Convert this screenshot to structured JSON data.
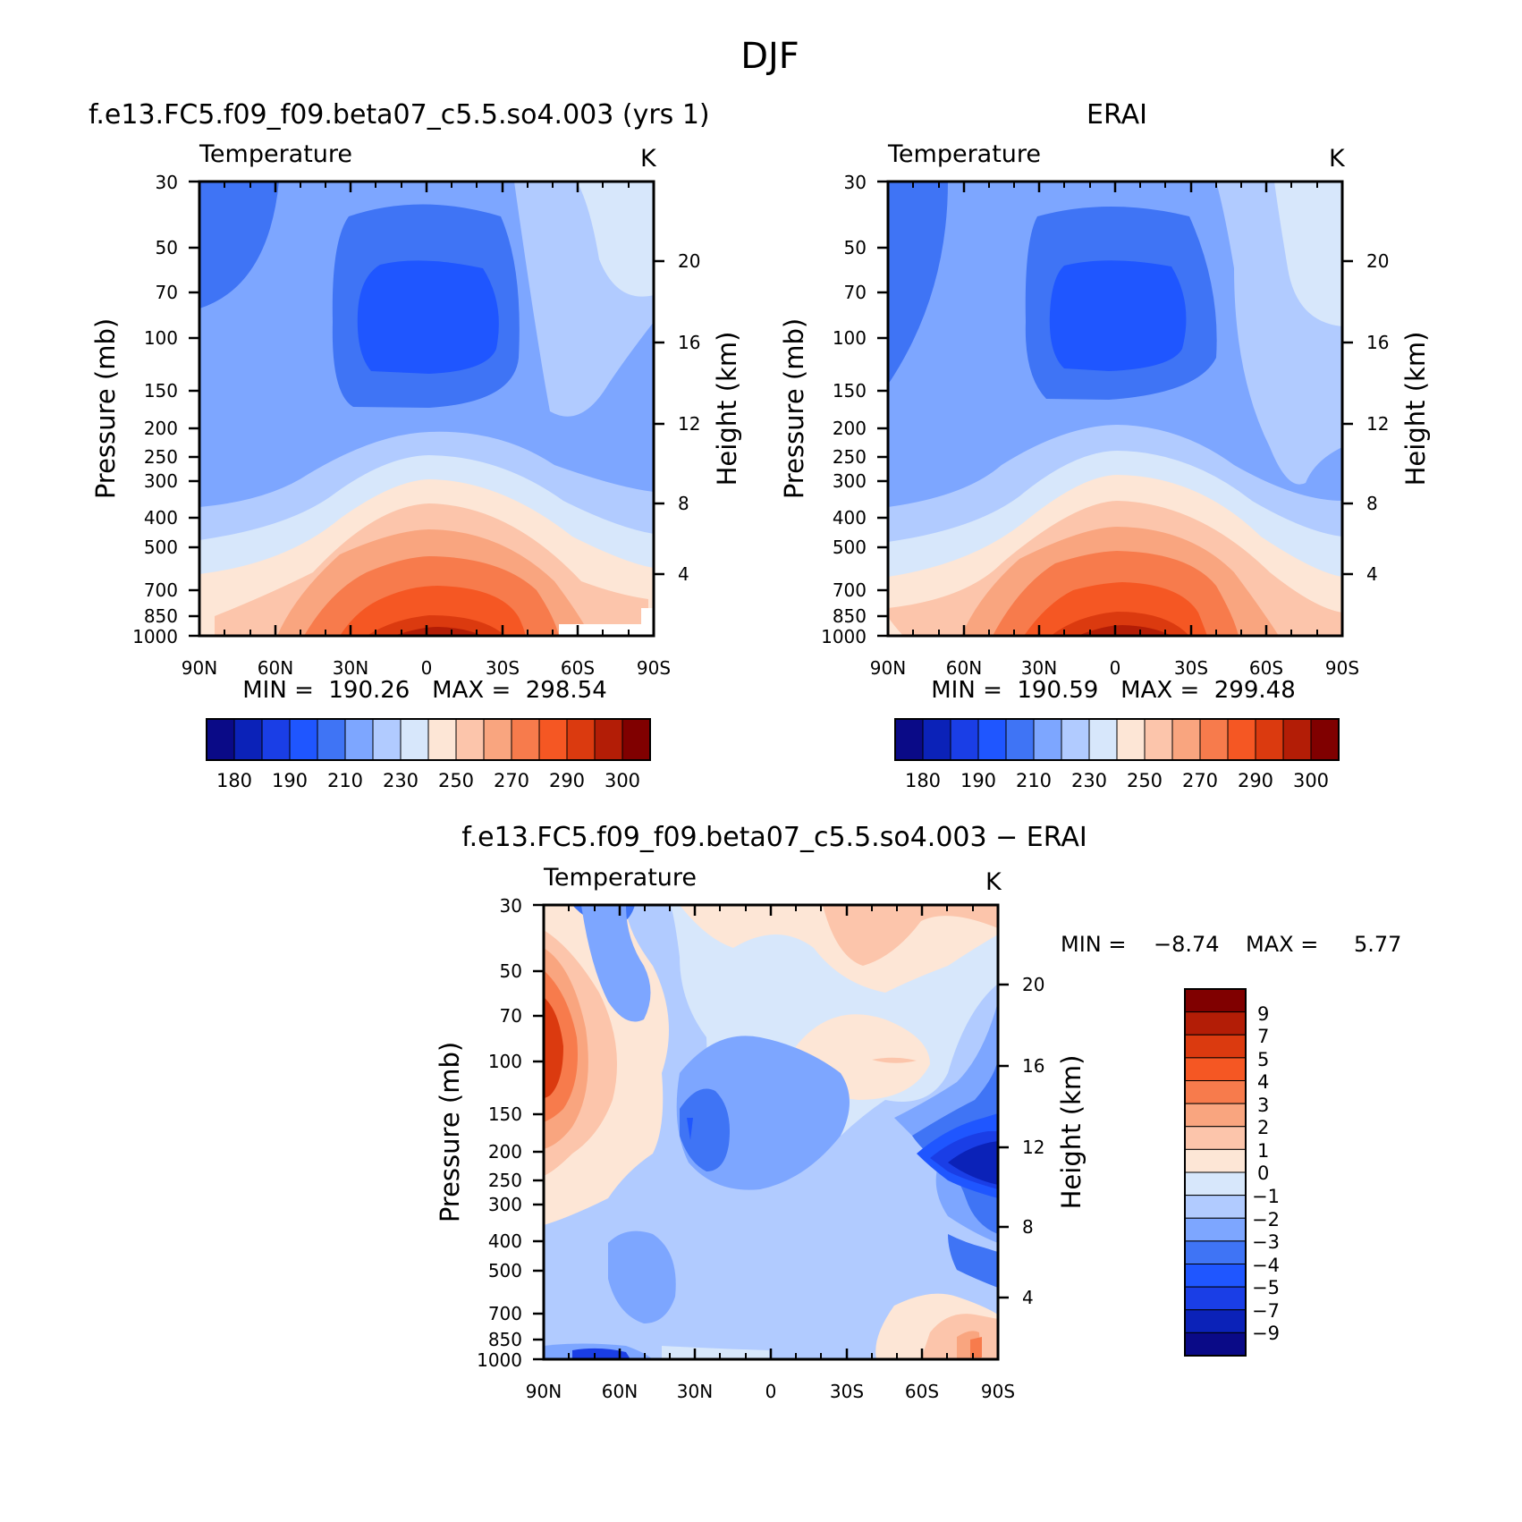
{
  "page_title": "DJF",
  "panels": [
    {
      "id": "model",
      "title": "f.e13.FC5.f09_f09.beta07_c5.5.so4.003 (yrs 1)",
      "variable_label": "Temperature",
      "units": "K",
      "min_max_label": "MIN =  190.26   MAX =  298.54"
    },
    {
      "id": "obs",
      "title": "ERAI",
      "variable_label": "Temperature",
      "units": "K",
      "min_max_label": "MIN =  190.59   MAX =  299.48"
    },
    {
      "id": "diff",
      "title": "f.e13.FC5.f09_f09.beta07_c5.5.so4.003 − ERAI",
      "variable_label": "Temperature",
      "units": "K",
      "min_label": "MIN =",
      "min_value": "−8.74",
      "max_label": "MAX =",
      "max_value": "5.77"
    }
  ],
  "axes": {
    "ylabel_left": "Pressure (mb)",
    "ylabel_right": "Height (km)",
    "pressure_ticks": [
      "30",
      "50",
      "70",
      "100",
      "150",
      "200",
      "250",
      "300",
      "400",
      "500",
      "700",
      "850",
      "1000"
    ],
    "height_ticks": [
      "20",
      "16",
      "12",
      "8",
      "4"
    ],
    "lat_ticks": [
      "90N",
      "60N",
      "30N",
      "0",
      "30S",
      "60S",
      "90S"
    ]
  },
  "colorbars": {
    "temperature": {
      "labels": [
        "180",
        "190",
        "210",
        "230",
        "250",
        "270",
        "290",
        "300"
      ],
      "colors": [
        "#0a0a87",
        "#0b22b8",
        "#1a3ee6",
        "#1f56ff",
        "#3f74f5",
        "#7da6ff",
        "#b1cbff",
        "#d7e7fb",
        "#fde6d6",
        "#fcc5ab",
        "#f9a57f",
        "#f77b4c",
        "#f55723",
        "#db3a0f",
        "#b31d06",
        "#800000"
      ]
    },
    "difference": {
      "labels": [
        "9",
        "7",
        "5",
        "4",
        "3",
        "2",
        "1",
        "0",
        "−1",
        "−2",
        "−3",
        "−4",
        "−5",
        "−7",
        "−9"
      ],
      "colors": [
        "#800000",
        "#b31d06",
        "#db3a0f",
        "#f55723",
        "#f77b4c",
        "#f9a57f",
        "#fcc5ab",
        "#fde6d6",
        "#d7e7fb",
        "#b1cbff",
        "#7da6ff",
        "#3f74f5",
        "#1f56ff",
        "#1a3ee6",
        "#0b22b8",
        "#0a0a87"
      ]
    }
  },
  "chart_data": [
    {
      "type": "heatmap",
      "title": "f.e13.FC5.f09_f09.beta07_c5.5.so4.003 (yrs 1)",
      "variable": "Temperature",
      "units": "K",
      "x": [
        "90N",
        "60N",
        "30N",
        "0",
        "30S",
        "60S",
        "90S"
      ],
      "y": [
        "30",
        "50",
        "70",
        "100",
        "150",
        "200",
        "250",
        "300",
        "400",
        "500",
        "700",
        "850",
        "1000"
      ],
      "xlabel": "",
      "ylabel": "Pressure (mb)",
      "ylabel_right": "Height (km)",
      "min": 190.26,
      "max": 298.54
    },
    {
      "type": "heatmap",
      "title": "ERAI",
      "variable": "Temperature",
      "units": "K",
      "x": [
        "90N",
        "60N",
        "30N",
        "0",
        "30S",
        "60S",
        "90S"
      ],
      "y": [
        "30",
        "50",
        "70",
        "100",
        "150",
        "200",
        "250",
        "300",
        "400",
        "500",
        "700",
        "850",
        "1000"
      ],
      "xlabel": "",
      "ylabel": "Pressure (mb)",
      "ylabel_right": "Height (km)",
      "min": 190.59,
      "max": 299.48
    },
    {
      "type": "heatmap",
      "title": "f.e13.FC5.f09_f09.beta07_c5.5.so4.003 − ERAI",
      "variable": "Temperature",
      "units": "K",
      "x": [
        "90N",
        "60N",
        "30N",
        "0",
        "30S",
        "60S",
        "90S"
      ],
      "y": [
        "30",
        "50",
        "70",
        "100",
        "150",
        "200",
        "250",
        "300",
        "400",
        "500",
        "700",
        "850",
        "1000"
      ],
      "xlabel": "",
      "ylabel": "Pressure (mb)",
      "ylabel_right": "Height (km)",
      "min": -8.74,
      "max": 5.77
    }
  ]
}
